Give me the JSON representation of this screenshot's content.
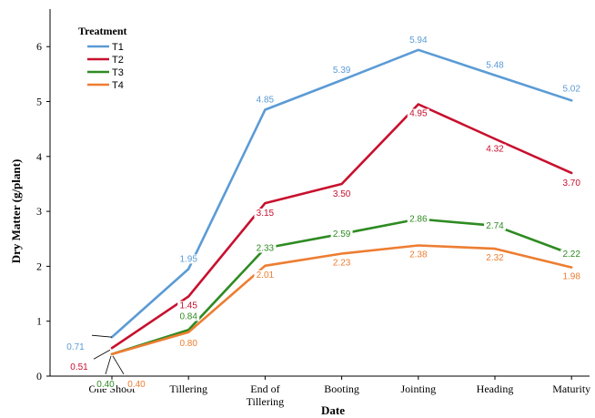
{
  "chart_data": {
    "type": "line",
    "xlabel": "Date",
    "ylabel": "Dry Matter (g/plant)",
    "ylim": [
      0,
      6.5
    ],
    "yticks": [
      0,
      1,
      2,
      3,
      4,
      5,
      6
    ],
    "grid": false,
    "legend": {
      "title": "Treatment",
      "placement": "top-left"
    },
    "categories": [
      "One Shoot",
      "Tillering",
      "End of Tillering",
      "Booting",
      "Jointing",
      "Heading",
      "Maturity"
    ],
    "category_labels": [
      [
        "One Shoot"
      ],
      [
        "Tillering"
      ],
      [
        "End of",
        "Tillering"
      ],
      [
        "Booting"
      ],
      [
        "Jointing"
      ],
      [
        "Heading"
      ],
      [
        "Maturity"
      ]
    ],
    "series": [
      {
        "name": "T1",
        "color": "#5b9bd5",
        "values": [
          0.71,
          1.95,
          4.85,
          5.39,
          5.94,
          5.48,
          5.02
        ],
        "labels": [
          "0.71",
          "1.95",
          "4.85",
          "5.39",
          "5.94",
          "5.48",
          "5.02"
        ]
      },
      {
        "name": "T2",
        "color": "#c8102e",
        "values": [
          0.51,
          1.45,
          3.15,
          3.5,
          4.95,
          4.32,
          3.7
        ],
        "labels": [
          "0.51",
          "1.45",
          "3.15",
          "3.50",
          "4.95",
          "4.32",
          "3.70"
        ]
      },
      {
        "name": "T3",
        "color": "#2e8b22",
        "values": [
          0.4,
          0.84,
          2.33,
          2.59,
          2.86,
          2.74,
          2.22
        ],
        "labels": [
          "0.40",
          "0.84",
          "2.33",
          "2.59",
          "2.86",
          "2.74",
          "2.22"
        ]
      },
      {
        "name": "T4",
        "color": "#ed7d31",
        "values": [
          0.4,
          0.8,
          2.01,
          2.23,
          2.38,
          2.32,
          1.98
        ],
        "labels": [
          "0.40",
          "0.80",
          "2.01",
          "2.23",
          "2.38",
          "2.32",
          "1.98"
        ]
      }
    ]
  }
}
